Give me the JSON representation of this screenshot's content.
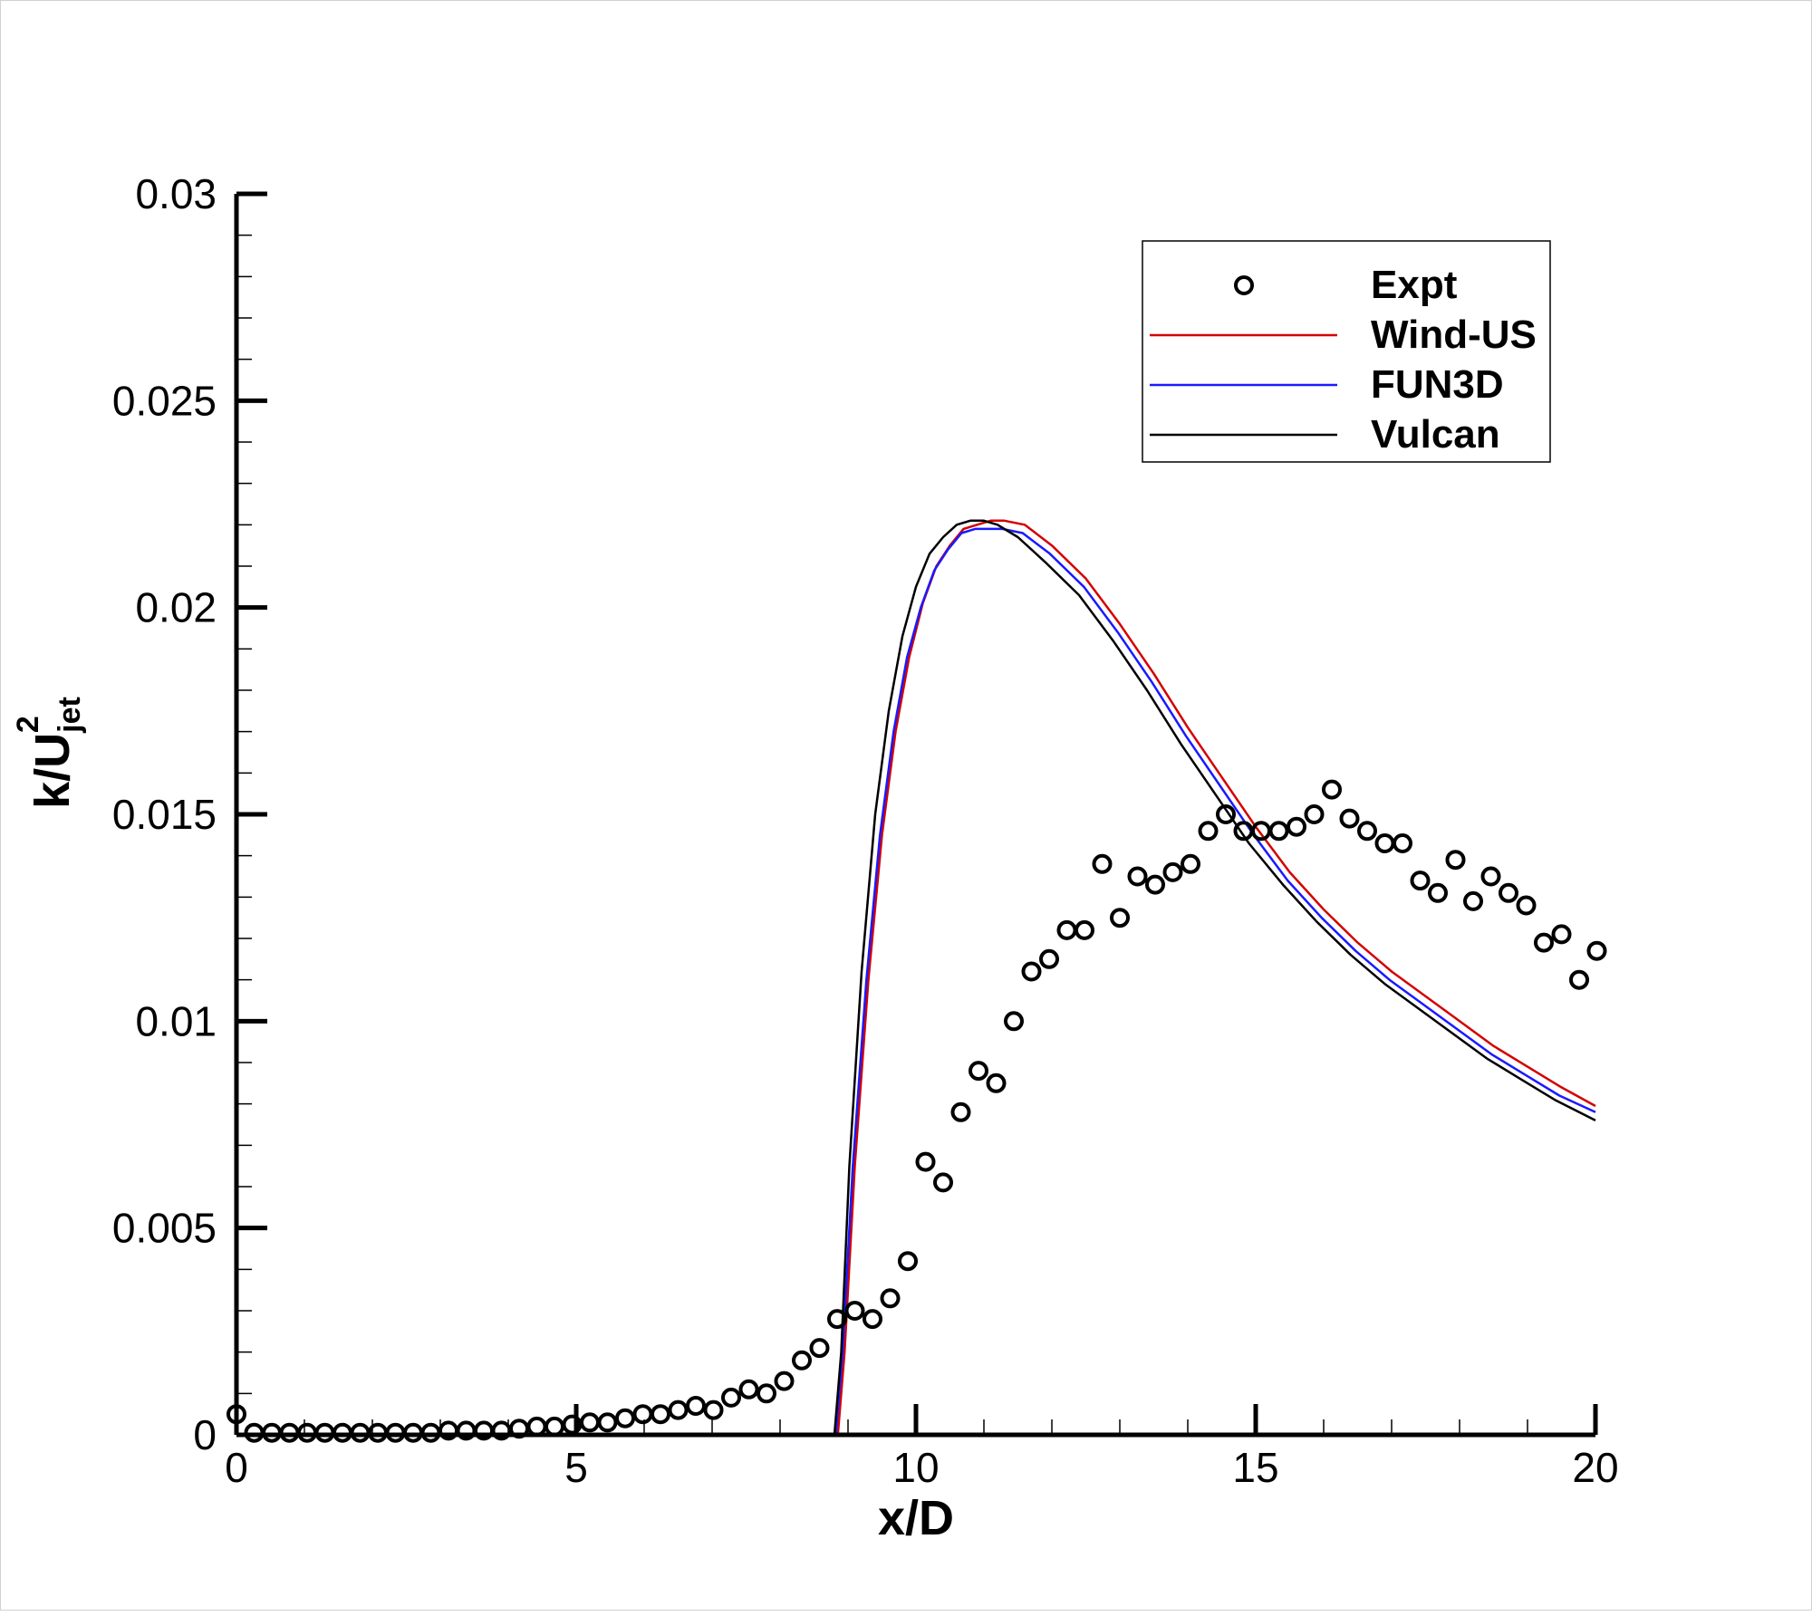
{
  "chart_data": {
    "type": "line",
    "title": "",
    "xlabel": "x/D",
    "ylabel": {
      "main": "k/U",
      "subscript": "jet",
      "superscript": "2"
    },
    "xlim": [
      0,
      20
    ],
    "ylim": [
      0,
      0.03
    ],
    "x_ticks": [
      0,
      5,
      10,
      15,
      20
    ],
    "x_tick_labels": [
      "0",
      "5",
      "10",
      "15",
      "20"
    ],
    "y_ticks": [
      0,
      0.005,
      0.01,
      0.015,
      0.02,
      0.025,
      0.03
    ],
    "y_tick_labels": [
      "0",
      "0.005",
      "0.01",
      "0.015",
      "0.02",
      "0.025",
      "0.03"
    ],
    "grid": false,
    "legend_position": "top-right",
    "legend": [
      "Expt",
      "Wind-US",
      "FUN3D",
      "Vulcan"
    ],
    "series": [
      {
        "name": "Expt",
        "kind": "scatter",
        "marker": "open-circle",
        "color": "#000000",
        "x": [
          0.0,
          0.26,
          0.52,
          0.78,
          1.04,
          1.3,
          1.56,
          1.82,
          2.08,
          2.34,
          2.6,
          2.86,
          3.12,
          3.38,
          3.64,
          3.9,
          4.16,
          4.42,
          4.68,
          4.94,
          5.2,
          5.46,
          5.72,
          5.98,
          6.24,
          6.5,
          6.76,
          7.02,
          7.28,
          7.54,
          7.8,
          8.06,
          8.32,
          8.58,
          8.84,
          9.1,
          9.36,
          9.62,
          9.88,
          10.14,
          10.4,
          10.66,
          10.92,
          11.18,
          11.44,
          11.7,
          11.96,
          12.22,
          12.48,
          12.74,
          13.0,
          13.26,
          13.52,
          13.78,
          14.04,
          14.3,
          14.56,
          14.82,
          15.08,
          15.34,
          15.6,
          15.86,
          16.12,
          16.38,
          16.64,
          16.9,
          17.16,
          17.42,
          17.68,
          17.94,
          18.2,
          18.46,
          18.72,
          18.98,
          19.24,
          19.5,
          19.76,
          20.02
        ],
        "y": [
          0.0005,
          5e-05,
          5e-05,
          5e-05,
          5e-05,
          5e-05,
          5e-05,
          5e-05,
          5e-05,
          5e-05,
          5e-05,
          5e-05,
          0.0001,
          0.0001,
          0.0001,
          0.0001,
          0.00015,
          0.0002,
          0.0002,
          0.00025,
          0.0003,
          0.0003,
          0.0004,
          0.0005,
          0.0005,
          0.0006,
          0.0007,
          0.0006,
          0.0009,
          0.0011,
          0.001,
          0.0013,
          0.0018,
          0.0021,
          0.0028,
          0.003,
          0.0028,
          0.0033,
          0.0042,
          0.0066,
          0.0061,
          0.0078,
          0.0088,
          0.0085,
          0.01,
          0.0112,
          0.0115,
          0.0122,
          0.0122,
          0.0138,
          0.0125,
          0.0135,
          0.0133,
          0.0136,
          0.0138,
          0.0146,
          0.015,
          0.0146,
          0.0146,
          0.0146,
          0.0147,
          0.015,
          0.0156,
          0.0149,
          0.0146,
          0.0143,
          0.0143,
          0.0134,
          0.0131,
          0.0139,
          0.0129,
          0.0135,
          0.0131,
          0.0128,
          0.0119,
          0.0121,
          0.011,
          0.0117
        ]
      },
      {
        "name": "Wind-US",
        "kind": "line",
        "color": "#d40000",
        "x": [
          8.85,
          8.95,
          9.1,
          9.3,
          9.5,
          9.7,
          9.9,
          10.1,
          10.3,
          10.5,
          10.7,
          10.9,
          11.1,
          11.3,
          11.6,
          12.0,
          12.5,
          13.0,
          13.5,
          14.0,
          14.5,
          15.0,
          15.5,
          16.0,
          16.5,
          17.0,
          17.5,
          18.0,
          18.5,
          19.0,
          19.5,
          20.0
        ],
        "y": [
          0.0,
          0.002,
          0.0065,
          0.011,
          0.0145,
          0.017,
          0.0188,
          0.0201,
          0.021,
          0.0215,
          0.0219,
          0.022,
          0.0221,
          0.0221,
          0.022,
          0.0215,
          0.0207,
          0.0196,
          0.0184,
          0.0171,
          0.0159,
          0.0147,
          0.0136,
          0.0127,
          0.0119,
          0.0112,
          0.0106,
          0.01,
          0.0094,
          0.0089,
          0.0084,
          0.00795
        ]
      },
      {
        "name": "FUN3D",
        "kind": "line",
        "color": "#1a1aff",
        "x": [
          8.82,
          8.92,
          9.07,
          9.27,
          9.47,
          9.67,
          9.87,
          10.07,
          10.27,
          10.47,
          10.67,
          10.87,
          11.07,
          11.27,
          11.57,
          11.97,
          12.47,
          12.97,
          13.47,
          13.97,
          14.47,
          14.97,
          15.47,
          15.97,
          16.47,
          16.97,
          17.47,
          17.97,
          18.47,
          18.97,
          19.47,
          20.0
        ],
        "y": [
          0.0,
          0.002,
          0.0065,
          0.011,
          0.0145,
          0.017,
          0.0188,
          0.02,
          0.0209,
          0.0214,
          0.0218,
          0.0219,
          0.0219,
          0.0219,
          0.0218,
          0.0213,
          0.0205,
          0.0194,
          0.0182,
          0.0169,
          0.0157,
          0.0145,
          0.0134,
          0.0125,
          0.0117,
          0.011,
          0.0104,
          0.0098,
          0.0092,
          0.0087,
          0.0082,
          0.0078
        ]
      },
      {
        "name": "Vulcan",
        "kind": "line",
        "color": "#000000",
        "x": [
          8.8,
          8.9,
          9.02,
          9.2,
          9.4,
          9.6,
          9.8,
          10.0,
          10.2,
          10.4,
          10.6,
          10.8,
          11.0,
          11.2,
          11.5,
          11.9,
          12.4,
          12.9,
          13.4,
          13.9,
          14.4,
          14.9,
          15.4,
          15.9,
          16.4,
          16.9,
          17.4,
          17.9,
          18.4,
          18.9,
          19.4,
          20.0
        ],
        "y": [
          0.0,
          0.002,
          0.0065,
          0.0112,
          0.015,
          0.0175,
          0.0193,
          0.0205,
          0.0213,
          0.0217,
          0.022,
          0.0221,
          0.0221,
          0.022,
          0.0217,
          0.0211,
          0.0203,
          0.0192,
          0.018,
          0.0167,
          0.0155,
          0.0143,
          0.0133,
          0.0124,
          0.0116,
          0.0109,
          0.0103,
          0.0097,
          0.0091,
          0.0086,
          0.0081,
          0.0076
        ]
      }
    ]
  }
}
